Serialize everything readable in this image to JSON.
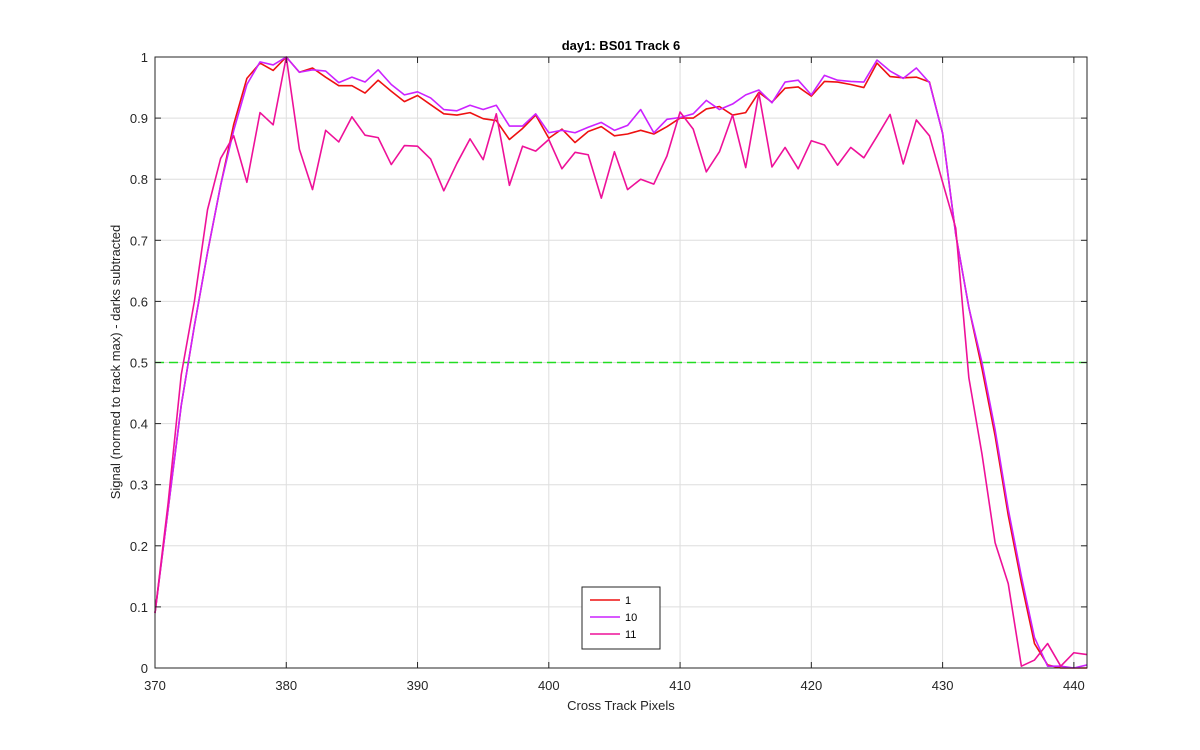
{
  "chart_data": {
    "type": "line",
    "title": "day1: BS01  Track 6",
    "xlabel": "Cross Track Pixels",
    "ylabel": "Signal (normed to track max) - darks subtracted",
    "xlim": [
      370,
      441
    ],
    "ylim": [
      0,
      1
    ],
    "xticks": [
      370,
      380,
      390,
      400,
      410,
      420,
      430,
      440
    ],
    "xtick_labels": [
      "370",
      "380",
      "390",
      "400",
      "410",
      "420",
      "430",
      "440"
    ],
    "yticks": [
      0,
      0.1,
      0.2,
      0.3,
      0.4,
      0.5,
      0.6,
      0.7,
      0.8,
      0.9,
      1
    ],
    "ytick_labels": [
      "0",
      "0.1",
      "0.2",
      "0.3",
      "0.4",
      "0.5",
      "0.6",
      "0.7",
      "0.8",
      "0.9",
      "1"
    ],
    "grid": true,
    "legend": "bottom-center",
    "reference_lines": [
      {
        "y": 0.5,
        "color": "#22dd22",
        "style": "dashed"
      }
    ],
    "x": [
      370,
      371,
      372,
      373,
      374,
      375,
      376,
      377,
      378,
      379,
      380,
      381,
      382,
      383,
      384,
      385,
      386,
      387,
      388,
      389,
      390,
      391,
      392,
      393,
      394,
      395,
      396,
      397,
      398,
      399,
      400,
      401,
      402,
      403,
      404,
      405,
      406,
      407,
      408,
      409,
      410,
      411,
      412,
      413,
      414,
      415,
      416,
      417,
      418,
      419,
      420,
      421,
      422,
      423,
      424,
      425,
      426,
      427,
      428,
      429,
      430,
      431,
      432,
      433,
      434,
      435,
      436,
      437,
      438,
      439,
      440,
      441
    ],
    "series": [
      {
        "name": "1",
        "color": "#ee1111",
        "values": [
          0.09,
          0.26,
          0.43,
          0.56,
          0.68,
          0.79,
          0.89,
          0.965,
          0.99,
          0.978,
          1.0,
          0.975,
          0.982,
          0.967,
          0.953,
          0.953,
          0.941,
          0.962,
          0.944,
          0.927,
          0.937,
          0.922,
          0.907,
          0.905,
          0.909,
          0.899,
          0.896,
          0.865,
          0.883,
          0.905,
          0.867,
          0.882,
          0.86,
          0.878,
          0.886,
          0.871,
          0.874,
          0.88,
          0.874,
          0.886,
          0.9,
          0.9,
          0.915,
          0.919,
          0.905,
          0.909,
          0.942,
          0.926,
          0.949,
          0.951,
          0.936,
          0.96,
          0.959,
          0.955,
          0.95,
          0.99,
          0.968,
          0.966,
          0.967,
          0.959,
          0.875,
          0.71,
          0.59,
          0.49,
          0.38,
          0.25,
          0.14,
          0.04,
          0.005,
          0.0,
          0.0,
          0.0
        ]
      },
      {
        "name": "10",
        "color": "#cc22ff",
        "values": [
          0.09,
          0.26,
          0.43,
          0.56,
          0.68,
          0.79,
          0.88,
          0.955,
          0.992,
          0.987,
          1.0,
          0.975,
          0.979,
          0.977,
          0.958,
          0.967,
          0.959,
          0.979,
          0.955,
          0.938,
          0.943,
          0.933,
          0.914,
          0.912,
          0.921,
          0.914,
          0.921,
          0.887,
          0.887,
          0.907,
          0.876,
          0.88,
          0.876,
          0.885,
          0.893,
          0.88,
          0.888,
          0.914,
          0.876,
          0.898,
          0.901,
          0.907,
          0.929,
          0.914,
          0.923,
          0.938,
          0.946,
          0.925,
          0.959,
          0.962,
          0.938,
          0.97,
          0.962,
          0.96,
          0.959,
          0.995,
          0.977,
          0.965,
          0.982,
          0.958,
          0.875,
          0.71,
          0.59,
          0.5,
          0.39,
          0.26,
          0.15,
          0.05,
          0.003,
          0.003,
          0.0,
          0.005
        ]
      },
      {
        "name": "11",
        "color": "#ee1199",
        "values": [
          0.09,
          0.27,
          0.48,
          0.6,
          0.75,
          0.834,
          0.871,
          0.795,
          0.909,
          0.889,
          1.0,
          0.849,
          0.783,
          0.88,
          0.861,
          0.902,
          0.872,
          0.868,
          0.824,
          0.855,
          0.854,
          0.833,
          0.781,
          0.826,
          0.866,
          0.832,
          0.907,
          0.79,
          0.854,
          0.846,
          0.865,
          0.817,
          0.844,
          0.84,
          0.769,
          0.845,
          0.783,
          0.8,
          0.792,
          0.838,
          0.91,
          0.882,
          0.812,
          0.845,
          0.905,
          0.819,
          0.941,
          0.82,
          0.852,
          0.817,
          0.863,
          0.856,
          0.823,
          0.852,
          0.835,
          0.87,
          0.906,
          0.825,
          0.897,
          0.871,
          0.795,
          0.72,
          0.475,
          0.35,
          0.205,
          0.138,
          0.003,
          0.013,
          0.04,
          0.003,
          0.025,
          0.022
        ]
      }
    ]
  }
}
